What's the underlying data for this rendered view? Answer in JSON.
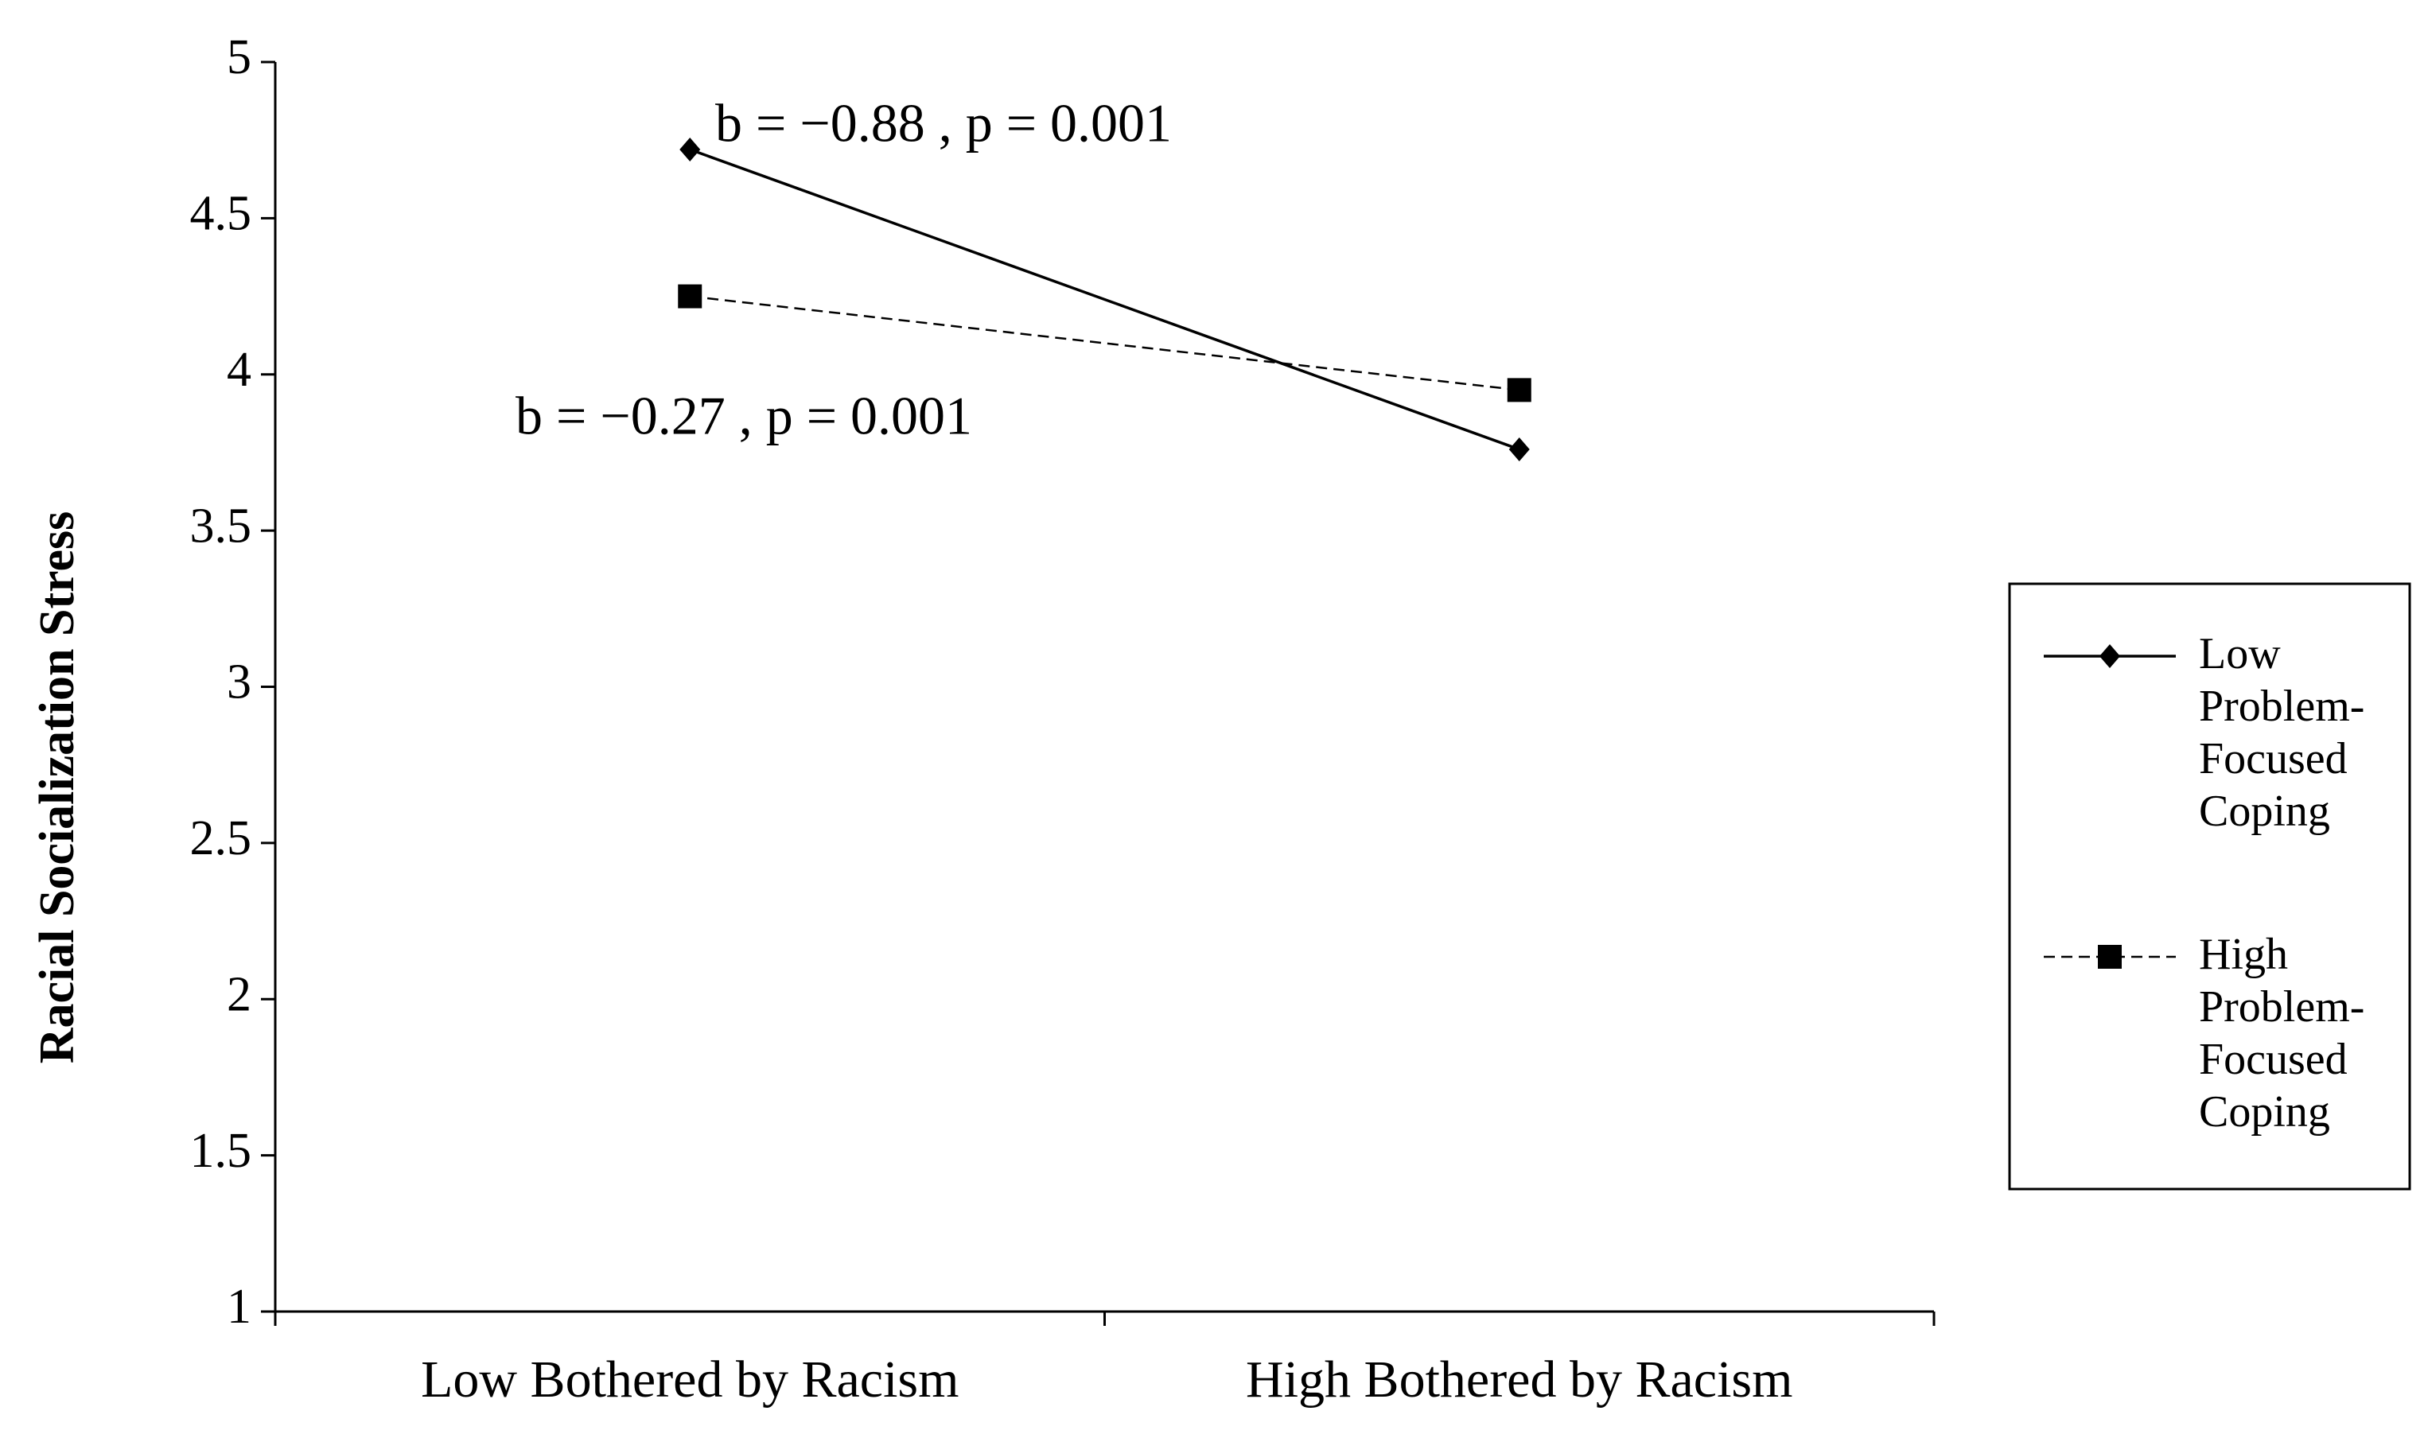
{
  "chart_data": {
    "type": "line",
    "y_label": "Racial Socialization Stress",
    "categories": [
      "Low Bothered by Racism",
      "High Bothered by Racism"
    ],
    "series": [
      {
        "name": "Low Problem-Focused Coping",
        "color": "#000000",
        "marker": "diamond",
        "dash": "solid",
        "values": [
          4.72,
          3.76
        ]
      },
      {
        "name": "High Problem-Focused Coping",
        "color": "#000000",
        "marker": "square",
        "dash": "dashed",
        "values": [
          4.25,
          3.95
        ]
      }
    ],
    "annotations": [
      "b = −0.88 , p = 0.001",
      "b = −0.27 , p = 0.001"
    ],
    "ylim": [
      1,
      5
    ],
    "yticks": [
      1,
      1.5,
      2,
      2.5,
      3,
      3.5,
      4,
      4.5,
      5
    ],
    "grid": false,
    "legend": "right"
  }
}
